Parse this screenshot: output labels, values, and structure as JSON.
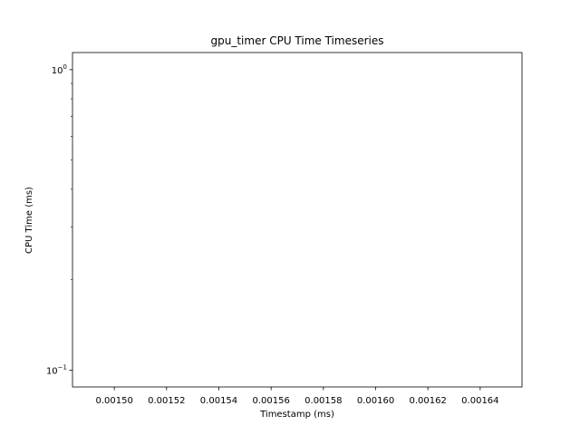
{
  "chart_data": {
    "type": "line",
    "title": "gpu_timer CPU Time Timeseries",
    "xlabel": "Timestamp (ms)",
    "ylabel": "CPU Time (ms)",
    "yscale": "log",
    "xlim": [
      0.001484,
      0.001656
    ],
    "ylim": [
      0.088,
      1.14
    ],
    "x_ticks": [
      {
        "value": 0.0015,
        "label": "0.00150"
      },
      {
        "value": 0.00152,
        "label": "0.00152"
      },
      {
        "value": 0.00154,
        "label": "0.00154"
      },
      {
        "value": 0.00156,
        "label": "0.00156"
      },
      {
        "value": 0.00158,
        "label": "0.00158"
      },
      {
        "value": 0.0016,
        "label": "0.00160"
      },
      {
        "value": 0.00162,
        "label": "0.00162"
      },
      {
        "value": 0.00164,
        "label": "0.00164"
      }
    ],
    "y_ticks": [
      {
        "value": 1,
        "base": "10",
        "exponent": "0"
      },
      {
        "value": 0.1,
        "base": "10",
        "exponent": "−1"
      }
    ],
    "y_minor_ticks": [
      0.2,
      0.3,
      0.4,
      0.5,
      0.6,
      0.7,
      0.8,
      0.9
    ],
    "series": [],
    "grid": false,
    "legend": "none"
  }
}
